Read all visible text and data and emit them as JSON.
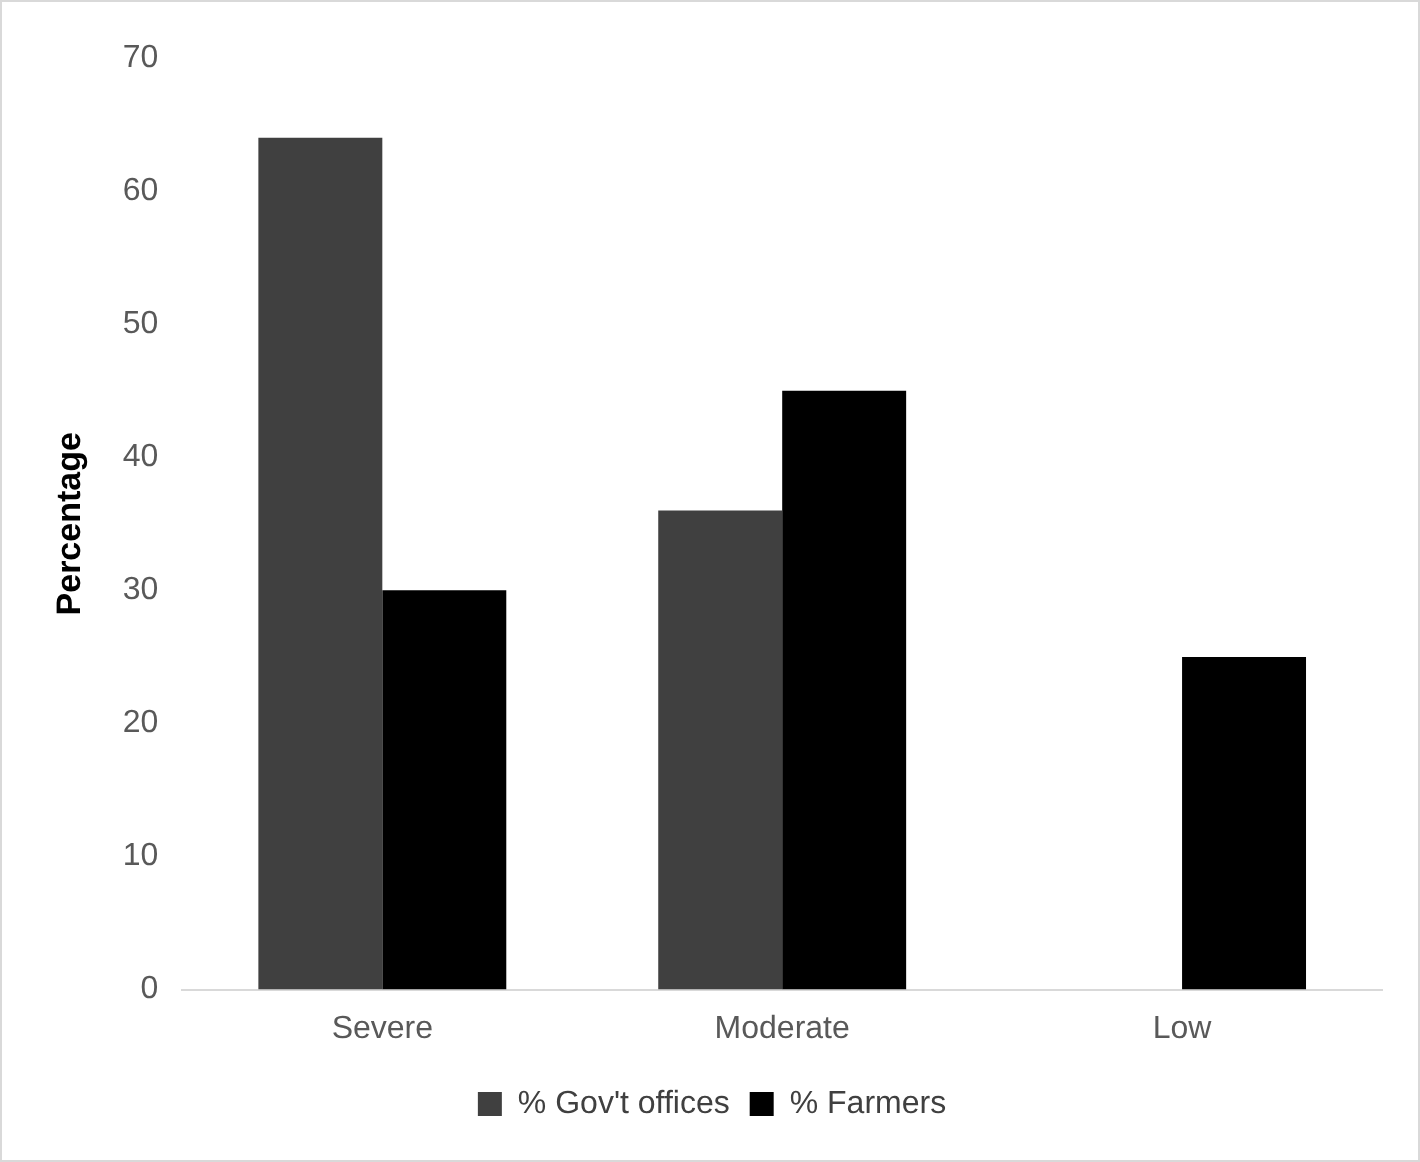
{
  "chart_data": {
    "type": "bar",
    "ylabel": "Percentage",
    "categories": [
      "Severe",
      "Moderate",
      "Low"
    ],
    "series": [
      {
        "name": "% Gov't offices",
        "color": "#404040",
        "values": [
          64,
          36,
          null
        ]
      },
      {
        "name": "% Farmers",
        "color": "#000000",
        "values": [
          30,
          45,
          25
        ]
      }
    ],
    "ylim": [
      0,
      70
    ],
    "yticks": [
      0,
      10,
      20,
      30,
      40,
      50,
      60,
      70
    ],
    "grid": false,
    "legend": "bottom"
  }
}
